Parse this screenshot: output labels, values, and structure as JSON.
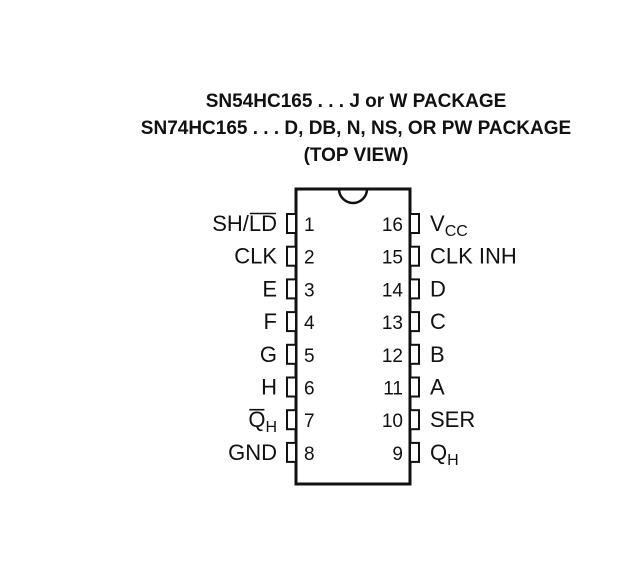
{
  "header": {
    "line1": "SN54HC165 . . . J or W PACKAGE",
    "line2": "SN74HC165 . . . D, DB, N, NS, OR PW PACKAGE",
    "line3": "(TOP VIEW)"
  },
  "left_pins": [
    {
      "num": "1",
      "name": "SH/",
      "overbar": "LD",
      "sub": ""
    },
    {
      "num": "2",
      "name": "CLK",
      "overbar": "",
      "sub": ""
    },
    {
      "num": "3",
      "name": "E",
      "overbar": "",
      "sub": ""
    },
    {
      "num": "4",
      "name": "F",
      "overbar": "",
      "sub": ""
    },
    {
      "num": "5",
      "name": "G",
      "overbar": "",
      "sub": ""
    },
    {
      "num": "6",
      "name": "H",
      "overbar": "",
      "sub": ""
    },
    {
      "num": "7",
      "name": "",
      "overbar": "Q",
      "sub": "H"
    },
    {
      "num": "8",
      "name": "GND",
      "overbar": "",
      "sub": ""
    }
  ],
  "right_pins": [
    {
      "num": "16",
      "name": "V",
      "sub": "CC"
    },
    {
      "num": "15",
      "name": "CLK INH",
      "sub": ""
    },
    {
      "num": "14",
      "name": "D",
      "sub": ""
    },
    {
      "num": "13",
      "name": "C",
      "sub": ""
    },
    {
      "num": "12",
      "name": "B",
      "sub": ""
    },
    {
      "num": "11",
      "name": "A",
      "sub": ""
    },
    {
      "num": "10",
      "name": "SER",
      "sub": ""
    },
    {
      "num": "9",
      "name": "Q",
      "sub": "H"
    }
  ]
}
